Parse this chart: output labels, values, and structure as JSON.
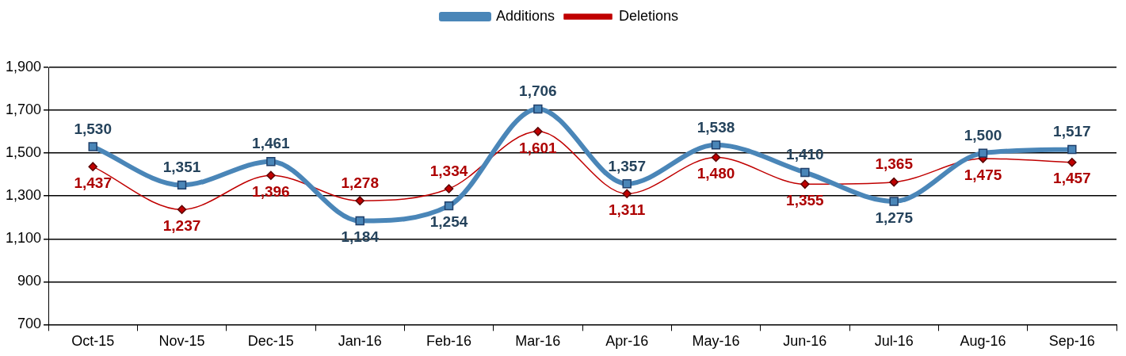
{
  "chart_data": {
    "type": "line",
    "categories": [
      "Oct-15",
      "Nov-15",
      "Dec-15",
      "Jan-16",
      "Feb-16",
      "Mar-16",
      "Apr-16",
      "May-16",
      "Jun-16",
      "Jul-16",
      "Aug-16",
      "Sep-16"
    ],
    "series": [
      {
        "name": "Additions",
        "color": "#4a86b8",
        "marker": "square",
        "values": [
          1530,
          1351,
          1461,
          1184,
          1254,
          1706,
          1357,
          1538,
          1410,
          1275,
          1500,
          1517
        ],
        "value_labels": [
          "1,530",
          "1,351",
          "1,461",
          "1,184",
          "1,254",
          "1,706",
          "1,357",
          "1,538",
          "1,410",
          "1,275",
          "1,500",
          "1,517"
        ]
      },
      {
        "name": "Deletions",
        "color": "#c00000",
        "marker": "diamond",
        "values": [
          1437,
          1237,
          1396,
          1278,
          1334,
          1601,
          1311,
          1480,
          1355,
          1365,
          1475,
          1457
        ],
        "value_labels": [
          "1,437",
          "1,237",
          "1,396",
          "1,278",
          "1,334",
          "1,601",
          "1,311",
          "1,480",
          "1,355",
          "1,365",
          "1,475",
          "1,457"
        ]
      }
    ],
    "ylim": [
      700,
      1900
    ],
    "yticks": [
      700,
      900,
      {
        "value": 1100,
        "label": "1,100"
      },
      {
        "value": 1300,
        "label": "1,300"
      },
      {
        "value": 1500,
        "label": "1,500"
      },
      {
        "value": 1700,
        "label": "1,700"
      },
      {
        "value": 1900,
        "label": "1,900"
      }
    ],
    "grid": "y",
    "legend": "top"
  }
}
